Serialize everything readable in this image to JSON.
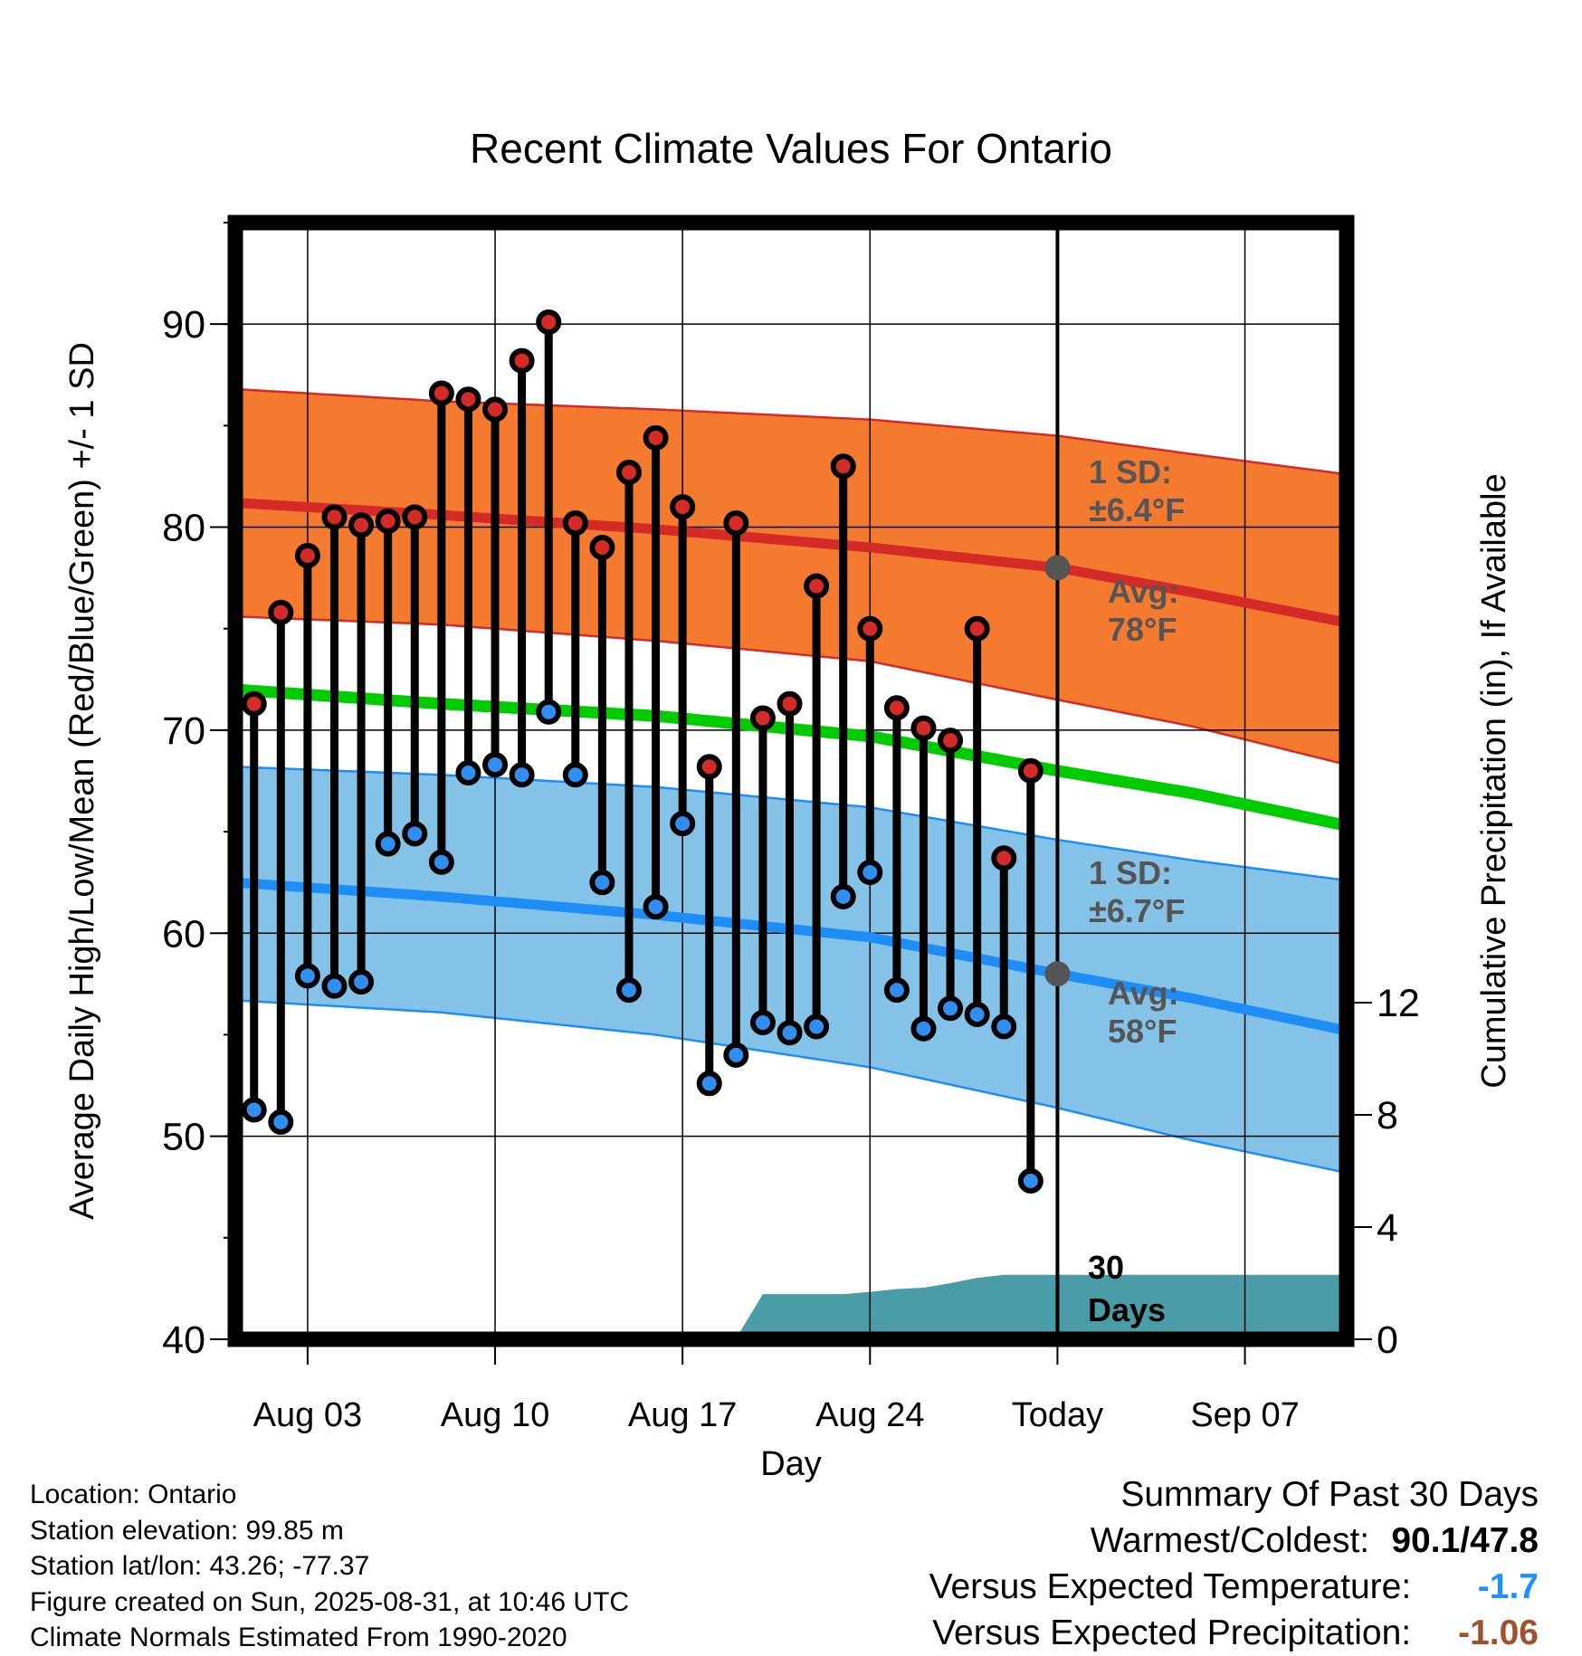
{
  "chart_data": {
    "type": "line",
    "title": "Recent Climate Values For Ontario",
    "xlabel": "Day",
    "ylabel": "Average Daily High/Low/Mean (Red/Blue/Green) +/- 1 SD",
    "y2label": "Cumulative Precipitation (in), If Available",
    "ylim": [
      40,
      95
    ],
    "y2lim": [
      0,
      12
    ],
    "yticks": [
      40,
      50,
      60,
      70,
      80,
      90
    ],
    "y2ticks": [
      0,
      4,
      8,
      12
    ],
    "xlim": [
      0.3,
      41.8
    ],
    "x_ticks": [
      {
        "day": 3,
        "label": "Aug 03"
      },
      {
        "day": 10,
        "label": "Aug 10"
      },
      {
        "day": 17,
        "label": "Aug 17"
      },
      {
        "day": 24,
        "label": "Aug 24"
      },
      {
        "day": 31,
        "label": "Today"
      },
      {
        "day": 38,
        "label": "Sep 07"
      }
    ],
    "today_day": 31,
    "grid": true,
    "daily": {
      "days": [
        1,
        2,
        3,
        4,
        5,
        6,
        7,
        8,
        9,
        10,
        11,
        12,
        13,
        14,
        15,
        16,
        17,
        18,
        19,
        20,
        21,
        22,
        23,
        24,
        25,
        26,
        27,
        28,
        29,
        30
      ],
      "high": [
        71.3,
        75.8,
        78.6,
        80.5,
        80.1,
        80.3,
        80.5,
        86.6,
        86.3,
        85.8,
        88.2,
        90.1,
        80.2,
        79.0,
        82.7,
        84.4,
        81.0,
        68.2,
        80.2,
        70.6,
        71.3,
        77.1,
        83.0,
        75.0,
        71.1,
        70.1,
        69.5,
        75.0,
        63.7,
        68.0
      ],
      "low": [
        51.3,
        50.7,
        57.9,
        57.4,
        57.6,
        64.4,
        64.9,
        63.5,
        67.9,
        68.3,
        67.8,
        70.9,
        67.8,
        62.5,
        57.2,
        61.3,
        65.4,
        52.6,
        54.0,
        55.6,
        55.1,
        55.4,
        61.8,
        63.0,
        57.2,
        55.3,
        56.3,
        56.0,
        55.4,
        47.8
      ]
    },
    "normals": {
      "x": [
        0.3,
        8,
        16,
        24,
        31,
        36,
        41.8
      ],
      "high_avg": [
        81.2,
        80.6,
        79.9,
        79.0,
        78.0,
        76.8,
        75.3
      ],
      "high_upper": [
        86.8,
        86.2,
        85.8,
        85.3,
        84.5,
        83.6,
        82.6
      ],
      "high_lower": [
        75.6,
        75.2,
        74.4,
        73.4,
        71.5,
        70.2,
        68.3
      ],
      "mean": [
        72.0,
        71.3,
        70.7,
        69.7,
        68.0,
        66.9,
        65.3
      ],
      "low_avg": [
        62.5,
        61.8,
        60.9,
        59.8,
        58.0,
        56.8,
        55.2
      ],
      "low_upper": [
        68.2,
        67.8,
        67.2,
        66.2,
        64.6,
        63.6,
        62.6
      ],
      "low_lower": [
        56.7,
        56.1,
        55.0,
        53.4,
        51.4,
        49.8,
        48.2
      ]
    },
    "precip": {
      "x": [
        0.3,
        12.7,
        13.3,
        19.1,
        20,
        23,
        24,
        25,
        26,
        27,
        28,
        29,
        41.8
      ],
      "cum": [
        0,
        0,
        0.19,
        0.19,
        1.61,
        1.61,
        1.69,
        1.79,
        1.84,
        2.0,
        2.19,
        2.3,
        2.3
      ]
    },
    "annotations": [
      {
        "line1": "1 SD:",
        "line2": "±6.4°F",
        "band": "high"
      },
      {
        "line1": "Avg:",
        "line2": "78°F",
        "band": "high",
        "value": 78
      },
      {
        "line1": "1 SD:",
        "line2": "±6.7°F",
        "band": "low"
      },
      {
        "line1": "Avg:",
        "line2": "58°F",
        "band": "low",
        "value": 58
      },
      {
        "line1": "30",
        "line2": "Days",
        "band": "precip"
      }
    ],
    "colors": {
      "high_band": "#f47a2f",
      "high_line": "#d42a28",
      "low_band": "#84c2e8",
      "low_line": "#1e8ef6",
      "mean_line": "#00cc00",
      "precip": "#4a9ca6",
      "high_marker": "#d42a28",
      "low_marker": "#2f8ef0",
      "avg_marker": "#555555",
      "annotation": "#555555"
    }
  },
  "footer": {
    "location": "Location: Ontario",
    "elevation": "Station elevation: 99.85 m",
    "latlon": "Station lat/lon: 43.26; -77.37",
    "created": "Figure created on Sun, 2025-08-31, at 10:46 UTC",
    "normals": "Climate Normals Estimated From 1990-2020"
  },
  "summary": {
    "title": "Summary Of Past 30 Days",
    "warmest_label": "Warmest/Coldest:",
    "warmest_value": "90.1/47.8",
    "temp_label": "Versus Expected Temperature:",
    "temp_value": "-1.7",
    "temp_color": "#1e90ff",
    "precip_label": "Versus Expected Precipitation:",
    "precip_value": "-1.06",
    "precip_color": "#a0522d"
  }
}
